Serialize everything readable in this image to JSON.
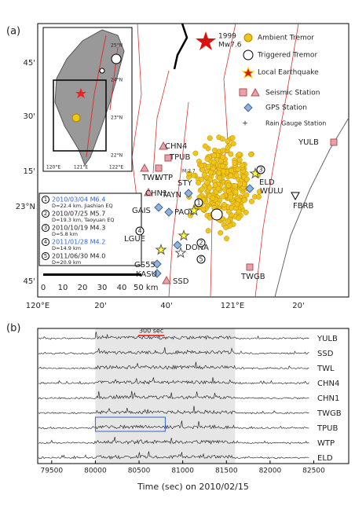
{
  "map": {
    "label": "(a)",
    "quake_1999": {
      "year": "1999",
      "magnitude": "Mw7.6"
    },
    "legend": [
      "Ambient Tremor",
      "Triggered Tremor",
      "Local Earthquake",
      "Seismic Station",
      "GPS Station",
      "Rain Gauge Station"
    ],
    "lon_ticks": [
      "120°E",
      "20'",
      "40'",
      "121°E",
      "20'"
    ],
    "lat_ticks": [
      "45'",
      "30'",
      "15'",
      "23°N",
      "45'"
    ],
    "inset": {
      "lat_ticks": [
        "25°N",
        "24°N",
        "23°N",
        "22°N"
      ],
      "lon_ticks": [
        "120°E",
        "121°E",
        "122°E"
      ]
    },
    "stations": [
      "CHN4",
      "TPUB",
      "WTP",
      "TWL",
      "CHN1",
      "M:2.7",
      "STY",
      "TAYN",
      "GAIS",
      "PAOL",
      "LGUE",
      "DONA",
      "GS55",
      "KASU",
      "SSD",
      "YULB",
      "ELD",
      "WULU",
      "FBRB",
      "TWGB"
    ],
    "event_numbers": [
      "1",
      "2",
      "3",
      "4",
      "5"
    ],
    "events": [
      {
        "date": "2010/03/04 M6.4",
        "detail": "D=22.4 km, Jiashian EQ"
      },
      {
        "date": "2010/07/25 M5.7",
        "detail": "D=19.3 km, Taoyuan EQ"
      },
      {
        "date": "2010/10/19 M4.3",
        "detail": "D=5.8 km"
      },
      {
        "date": "2011/01/28 M4.2",
        "detail": "D=14.9 km"
      },
      {
        "date": "2011/06/30 M4.0",
        "detail": "D=20.9 km"
      }
    ],
    "scale_labels": [
      "0",
      "10",
      "20",
      "30",
      "40",
      "50 km"
    ]
  },
  "waveforms": {
    "label": "(b)",
    "xlim": [
      79340,
      82900
    ],
    "xticks": [
      79500,
      80000,
      80500,
      81000,
      81500,
      82000,
      82500
    ],
    "xlabel": "Time (sec) on 2010/02/15",
    "stations": [
      "YULB",
      "SSD",
      "TWL",
      "CHN4",
      "CHN1",
      "TWGB",
      "TPUB",
      "WTP",
      "ELD"
    ],
    "shaded": [
      80000,
      81600
    ],
    "scale_bar": [
      80490,
      80790
    ],
    "scale_label": "300 sec",
    "highlight_box": [
      80000,
      80800
    ]
  }
}
